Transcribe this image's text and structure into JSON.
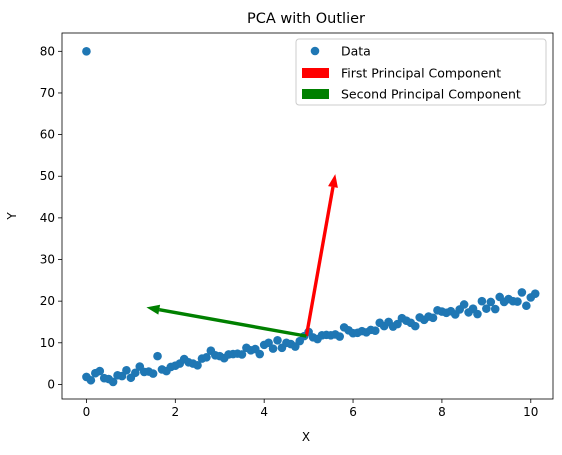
{
  "chart_data": {
    "type": "scatter",
    "title": "PCA with Outlier",
    "xlabel": "X",
    "ylabel": "Y",
    "xlim": [
      -0.55,
      10.5
    ],
    "ylim": [
      -3.5,
      84.4
    ],
    "xticks": [
      0,
      2,
      4,
      6,
      8,
      10
    ],
    "yticks": [
      0,
      10,
      20,
      30,
      40,
      50,
      60,
      70,
      80
    ],
    "grid": false,
    "legend_position": "top-right",
    "series": [
      {
        "name": "Data",
        "type": "scatter",
        "color": "#1f77b4",
        "points": [
          [
            0.0,
            1.8
          ],
          [
            0.1,
            1.0
          ],
          [
            0.2,
            2.7
          ],
          [
            0.3,
            3.2
          ],
          [
            0.4,
            1.5
          ],
          [
            0.5,
            1.3
          ],
          [
            0.6,
            0.6
          ],
          [
            0.7,
            2.2
          ],
          [
            0.8,
            2.0
          ],
          [
            0.9,
            3.4
          ],
          [
            1.0,
            1.6
          ],
          [
            1.1,
            2.8
          ],
          [
            1.2,
            4.3
          ],
          [
            1.3,
            3.0
          ],
          [
            1.4,
            3.1
          ],
          [
            1.5,
            2.6
          ],
          [
            1.6,
            6.8
          ],
          [
            1.7,
            3.6
          ],
          [
            1.8,
            3.2
          ],
          [
            1.9,
            4.2
          ],
          [
            2.0,
            4.5
          ],
          [
            2.1,
            5.0
          ],
          [
            2.2,
            6.1
          ],
          [
            2.3,
            5.3
          ],
          [
            2.4,
            5.0
          ],
          [
            2.5,
            4.6
          ],
          [
            2.6,
            6.2
          ],
          [
            2.7,
            6.5
          ],
          [
            2.8,
            8.1
          ],
          [
            2.9,
            7.0
          ],
          [
            3.0,
            6.8
          ],
          [
            3.1,
            6.3
          ],
          [
            3.2,
            7.2
          ],
          [
            3.3,
            7.3
          ],
          [
            3.4,
            7.4
          ],
          [
            3.5,
            7.2
          ],
          [
            3.6,
            8.8
          ],
          [
            3.7,
            8.2
          ],
          [
            3.8,
            8.5
          ],
          [
            3.9,
            7.3
          ],
          [
            4.0,
            9.5
          ],
          [
            4.1,
            10.0
          ],
          [
            4.2,
            8.6
          ],
          [
            4.3,
            10.6
          ],
          [
            4.4,
            8.8
          ],
          [
            4.5,
            10.0
          ],
          [
            4.6,
            9.7
          ],
          [
            4.7,
            9.1
          ],
          [
            4.8,
            10.4
          ],
          [
            4.9,
            11.6
          ],
          [
            5.0,
            12.6
          ],
          [
            5.1,
            11.3
          ],
          [
            5.2,
            10.9
          ],
          [
            5.3,
            11.8
          ],
          [
            5.4,
            11.9
          ],
          [
            5.5,
            11.8
          ],
          [
            5.6,
            12.0
          ],
          [
            5.7,
            11.5
          ],
          [
            5.8,
            13.7
          ],
          [
            5.9,
            13.0
          ],
          [
            6.0,
            12.3
          ],
          [
            6.1,
            12.4
          ],
          [
            6.2,
            12.8
          ],
          [
            6.3,
            12.5
          ],
          [
            6.4,
            13.1
          ],
          [
            6.5,
            12.9
          ],
          [
            6.6,
            14.8
          ],
          [
            6.7,
            14.0
          ],
          [
            6.8,
            15.0
          ],
          [
            6.9,
            13.9
          ],
          [
            7.0,
            14.5
          ],
          [
            7.1,
            15.9
          ],
          [
            7.2,
            15.3
          ],
          [
            7.3,
            14.8
          ],
          [
            7.4,
            14.0
          ],
          [
            7.5,
            16.1
          ],
          [
            7.6,
            15.5
          ],
          [
            7.7,
            16.3
          ],
          [
            7.8,
            16.0
          ],
          [
            7.9,
            17.8
          ],
          [
            8.0,
            17.5
          ],
          [
            8.1,
            17.2
          ],
          [
            8.2,
            17.6
          ],
          [
            8.3,
            16.8
          ],
          [
            8.4,
            18.0
          ],
          [
            8.5,
            19.2
          ],
          [
            8.6,
            17.3
          ],
          [
            8.7,
            18.2
          ],
          [
            8.8,
            16.9
          ],
          [
            8.9,
            20.0
          ],
          [
            9.0,
            18.2
          ],
          [
            9.1,
            19.8
          ],
          [
            9.2,
            18.1
          ],
          [
            9.3,
            21.0
          ],
          [
            9.4,
            19.8
          ],
          [
            9.5,
            20.5
          ],
          [
            9.6,
            20.0
          ],
          [
            9.7,
            19.9
          ],
          [
            9.8,
            22.1
          ],
          [
            9.9,
            18.9
          ],
          [
            10.0,
            20.9
          ],
          [
            10.1,
            21.8
          ],
          [
            0.0,
            80.0
          ]
        ]
      },
      {
        "name": "First Principal Component",
        "type": "arrow",
        "color": "#ff0000",
        "from": [
          4.95,
          11.6
        ],
        "to": [
          5.6,
          50.5
        ]
      },
      {
        "name": "Second Principal Component",
        "type": "arrow",
        "color": "#008000",
        "from": [
          4.95,
          11.6
        ],
        "to": [
          1.35,
          18.5
        ]
      }
    ]
  }
}
